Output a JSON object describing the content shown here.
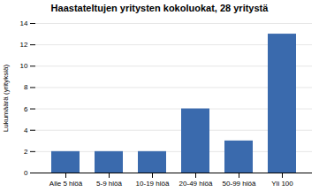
{
  "chart_data": {
    "type": "bar",
    "title": "Haastateltujen yritysten kokoluokat, 28 yritystä",
    "categories": [
      "Alle 5 hlöä",
      "5-9 hlöä",
      "10-19 hlöä",
      "20-49 hlöä",
      "50-99 hlöä",
      "Yli 100"
    ],
    "values": [
      2,
      2,
      2,
      6,
      3,
      13
    ],
    "color": "#3A6AAD",
    "ylabel": "Lukumäärä (yrityksiä)",
    "ylim": [
      0,
      14
    ],
    "yticks": [
      0,
      2,
      4,
      6,
      8,
      10,
      12,
      14
    ],
    "grid": true
  }
}
